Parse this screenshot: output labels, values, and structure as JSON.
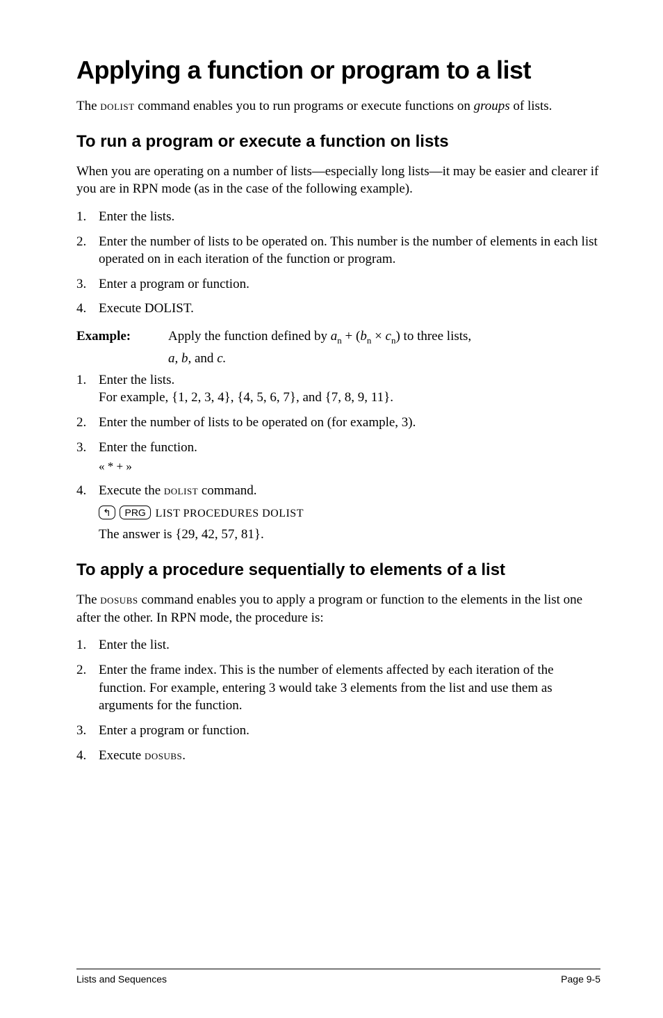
{
  "title": "Applying a function or program to a list",
  "intro_1a": "The ",
  "intro_1b_sc": "dolist",
  "intro_1c": " command enables you to run programs or execute functions on ",
  "intro_1d_it": "groups",
  "intro_1e": " of lists.",
  "h2_1": "To run a program or execute a function on lists",
  "para2": "When you are operating on a number of lists—especially long lists—it may be easier and clearer if you are in RPN mode (as in the case of the following example).",
  "listA": {
    "i1": "Enter the lists.",
    "i2": "Enter the number of lists to be operated on. This number is the number of elements in each list operated on in each iteration of the function or program.",
    "i3": "Enter a program or function.",
    "i4": "Execute DOLIST."
  },
  "example": {
    "label": "Example:",
    "pre": "Apply the function defined by ",
    "expr": {
      "a": "a",
      "n1": "n",
      "plus": " + (",
      "b": "b",
      "n2": "n",
      "times": " × ",
      "c": "c",
      "n3": "n",
      "close": ")"
    },
    "post": " to three lists, ",
    "abc": "a, b, ",
    "and": "and ",
    "cc": "c."
  },
  "listB": {
    "i1": "Enter the lists.",
    "i1b": "For example, {1, 2, 3, 4}, {4, 5, 6, 7}, and {7, 8, 9, 11}.",
    "i2": "Enter the number of lists to be operated on (for example, 3).",
    "i3": "Enter the function.",
    "i3b": "« * + »",
    "i4a": "Execute the ",
    "i4b_sc": "dolist",
    "i4c": " command.",
    "i4key_arrow": "↰",
    "i4key_prg": "PRG",
    "i4menu": "LIST PROCEDURES DOLIST",
    "i4ans": "The answer is {29, 42, 57, 81}."
  },
  "h2_2": "To apply a procedure sequentially to elements of a list",
  "para3a": "The ",
  "para3b_sc": "dosubs",
  "para3c": " command enables you to apply a program or function to the elements in the list one after the other. In RPN mode, the procedure is:",
  "listC": {
    "i1": "Enter the list.",
    "i2": "Enter the frame index. This is the number of elements affected by each iteration of the function. For example, entering 3 would take 3 elements from the list and use them as arguments for the function.",
    "i3": "Enter a program or function.",
    "i4a": "Execute ",
    "i4b_sc": "dosubs",
    "i4c": "."
  },
  "footer": {
    "left": "Lists and Sequences",
    "right": "Page 9-5"
  }
}
